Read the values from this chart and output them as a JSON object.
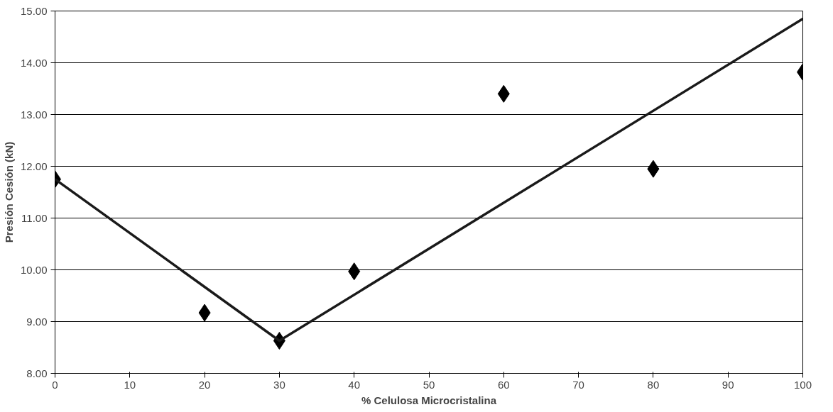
{
  "chart_data": {
    "type": "scatter",
    "xlabel": "% Celulosa Microcristalina",
    "ylabel": "Presión Cesión (kN)",
    "xlim": [
      0,
      100
    ],
    "ylim": [
      8,
      15
    ],
    "xticks": [
      0,
      10,
      20,
      30,
      40,
      50,
      60,
      70,
      80,
      90,
      100
    ],
    "yticks": [
      {
        "value": 8,
        "label": "8.00"
      },
      {
        "value": 9,
        "label": "9.00"
      },
      {
        "value": 10,
        "label": "10.00"
      },
      {
        "value": 11,
        "label": "11.00"
      },
      {
        "value": 12,
        "label": "12.00"
      },
      {
        "value": 13,
        "label": "13.00"
      },
      {
        "value": 14,
        "label": "14.00"
      },
      {
        "value": 15,
        "label": "15.00"
      }
    ],
    "grid": "y",
    "series": [
      {
        "marker": "diamond",
        "color": "#000000",
        "x": [
          0,
          20,
          30,
          40,
          60,
          80,
          100
        ],
        "values": [
          11.75,
          9.17,
          8.63,
          9.97,
          13.4,
          11.95,
          13.82
        ]
      },
      {
        "type": "line",
        "marker": "none",
        "line_style": "solid",
        "color": "#1a1a1a",
        "x": [
          0,
          30,
          100
        ],
        "values": [
          11.75,
          8.63,
          14.85
        ]
      }
    ]
  }
}
